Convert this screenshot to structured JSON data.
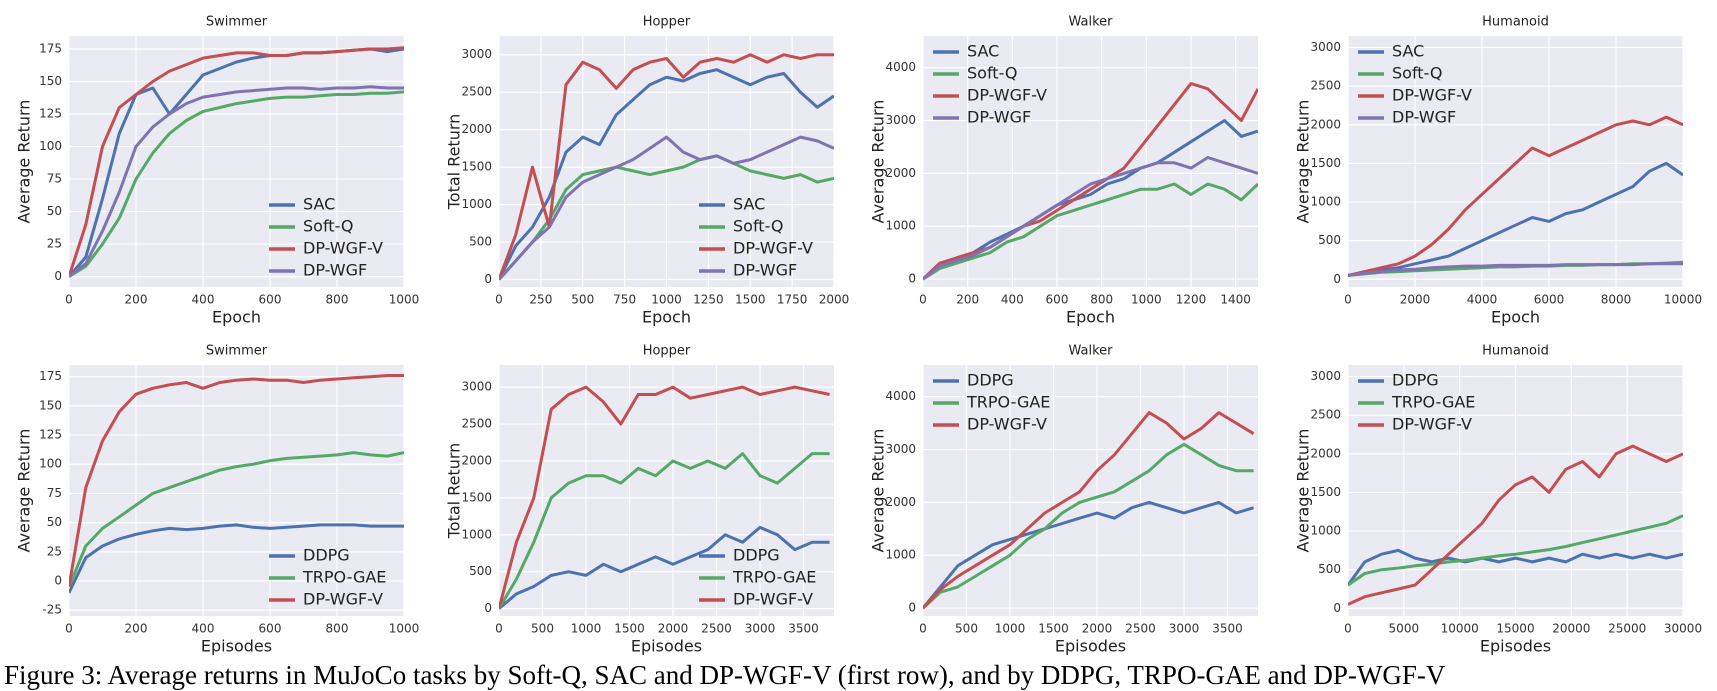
{
  "chart_data": [
    {
      "type": "line",
      "title": "Swimmer",
      "xlabel": "Epoch",
      "ylabel": "Average Return",
      "legend": "lower right",
      "x": [
        0,
        50,
        100,
        150,
        200,
        250,
        300,
        350,
        400,
        450,
        500,
        550,
        600,
        650,
        700,
        750,
        800,
        850,
        900,
        950,
        1000
      ],
      "xlim": [
        0,
        1000
      ],
      "ylim": [
        -8,
        185
      ],
      "xticks": [
        0,
        200,
        400,
        600,
        800,
        1000
      ],
      "yticks": [
        0,
        25,
        50,
        75,
        100,
        125,
        150,
        175
      ],
      "series": [
        {
          "name": "SAC",
          "color": "#4c72b0",
          "values": [
            0,
            15,
            60,
            110,
            140,
            145,
            125,
            140,
            155,
            160,
            165,
            168,
            170,
            170,
            172,
            172,
            173,
            174,
            175,
            173,
            175
          ]
        },
        {
          "name": "Soft-Q",
          "color": "#55a868",
          "values": [
            0,
            8,
            25,
            45,
            75,
            95,
            110,
            120,
            127,
            130,
            133,
            135,
            137,
            138,
            138,
            139,
            140,
            140,
            141,
            141,
            142
          ]
        },
        {
          "name": "DP-WGF-V",
          "color": "#c44e52",
          "values": [
            0,
            40,
            100,
            130,
            140,
            150,
            158,
            163,
            168,
            170,
            172,
            172,
            170,
            170,
            172,
            172,
            173,
            174,
            175,
            175,
            176
          ]
        },
        {
          "name": "DP-WGF",
          "color": "#8172b2",
          "values": [
            0,
            10,
            35,
            65,
            100,
            115,
            125,
            133,
            138,
            140,
            142,
            143,
            144,
            145,
            145,
            144,
            145,
            145,
            146,
            145,
            145
          ]
        }
      ]
    },
    {
      "type": "line",
      "title": "Hopper",
      "xlabel": "Epoch",
      "ylabel": "Total Return",
      "legend": "lower right",
      "x": [
        0,
        100,
        200,
        300,
        400,
        500,
        600,
        700,
        800,
        900,
        1000,
        1100,
        1200,
        1300,
        1400,
        1500,
        1600,
        1700,
        1800,
        1900,
        2000
      ],
      "xlim": [
        0,
        2000
      ],
      "ylim": [
        -100,
        3250
      ],
      "xticks": [
        0,
        250,
        500,
        750,
        1000,
        1250,
        1500,
        1750,
        2000
      ],
      "yticks": [
        0,
        500,
        1000,
        1500,
        2000,
        2500,
        3000
      ],
      "series": [
        {
          "name": "SAC",
          "color": "#4c72b0",
          "values": [
            0,
            450,
            700,
            1100,
            1700,
            1900,
            1800,
            2200,
            2400,
            2600,
            2700,
            2650,
            2750,
            2800,
            2700,
            2600,
            2700,
            2750,
            2500,
            2300,
            2450
          ]
        },
        {
          "name": "Soft-Q",
          "color": "#55a868",
          "values": [
            0,
            250,
            500,
            800,
            1200,
            1400,
            1450,
            1500,
            1450,
            1400,
            1450,
            1500,
            1600,
            1650,
            1550,
            1450,
            1400,
            1350,
            1400,
            1300,
            1350
          ]
        },
        {
          "name": "DP-WGF-V",
          "color": "#c44e52",
          "values": [
            0,
            600,
            1500,
            700,
            2600,
            2900,
            2800,
            2550,
            2800,
            2900,
            2950,
            2700,
            2900,
            2950,
            2900,
            3000,
            2900,
            3000,
            2950,
            3000,
            3000
          ]
        },
        {
          "name": "DP-WGF",
          "color": "#8172b2",
          "values": [
            0,
            250,
            500,
            700,
            1100,
            1300,
            1400,
            1500,
            1600,
            1750,
            1900,
            1700,
            1600,
            1650,
            1550,
            1600,
            1700,
            1800,
            1900,
            1850,
            1750
          ]
        }
      ]
    },
    {
      "type": "line",
      "title": "Walker",
      "xlabel": "Epoch",
      "ylabel": "Average Return",
      "legend": "upper left",
      "x": [
        0,
        75,
        150,
        225,
        300,
        375,
        450,
        525,
        600,
        675,
        750,
        825,
        900,
        975,
        1050,
        1125,
        1200,
        1275,
        1350,
        1425,
        1500
      ],
      "xlim": [
        0,
        1500
      ],
      "ylim": [
        -150,
        4600
      ],
      "xticks": [
        0,
        200,
        400,
        600,
        800,
        1000,
        1200,
        1400
      ],
      "yticks": [
        0,
        1000,
        2000,
        3000,
        4000
      ],
      "series": [
        {
          "name": "SAC",
          "color": "#4c72b0",
          "values": [
            0,
            250,
            400,
            500,
            700,
            850,
            1000,
            1200,
            1400,
            1500,
            1600,
            1800,
            1900,
            2100,
            2200,
            2400,
            2600,
            2800,
            3000,
            2700,
            2800
          ]
        },
        {
          "name": "Soft-Q",
          "color": "#55a868",
          "values": [
            0,
            200,
            300,
            400,
            500,
            700,
            800,
            1000,
            1200,
            1300,
            1400,
            1500,
            1600,
            1700,
            1700,
            1800,
            1600,
            1800,
            1700,
            1500,
            1800
          ]
        },
        {
          "name": "DP-WGF-V",
          "color": "#c44e52",
          "values": [
            0,
            300,
            400,
            500,
            600,
            800,
            1000,
            1100,
            1300,
            1500,
            1700,
            1900,
            2100,
            2500,
            2900,
            3300,
            3700,
            3600,
            3300,
            3000,
            3600
          ]
        },
        {
          "name": "DP-WGF",
          "color": "#8172b2",
          "values": [
            0,
            250,
            350,
            450,
            600,
            800,
            1000,
            1200,
            1400,
            1600,
            1800,
            1900,
            2000,
            2100,
            2200,
            2200,
            2100,
            2300,
            2200,
            2100,
            2000
          ]
        }
      ]
    },
    {
      "type": "line",
      "title": "Humanoid",
      "xlabel": "Epoch",
      "ylabel": "Average Return",
      "legend": "upper left",
      "x": [
        0,
        500,
        1000,
        1500,
        2000,
        2500,
        3000,
        3500,
        4000,
        4500,
        5000,
        5500,
        6000,
        6500,
        7000,
        7500,
        8000,
        8500,
        9000,
        9500,
        10000
      ],
      "xlim": [
        0,
        10000
      ],
      "ylim": [
        -100,
        3150
      ],
      "xticks": [
        0,
        2000,
        4000,
        6000,
        8000,
        10000
      ],
      "yticks": [
        0,
        500,
        1000,
        1500,
        2000,
        2500,
        3000
      ],
      "series": [
        {
          "name": "SAC",
          "color": "#4c72b0",
          "values": [
            50,
            80,
            120,
            150,
            200,
            250,
            300,
            400,
            500,
            600,
            700,
            800,
            750,
            850,
            900,
            1000,
            1100,
            1200,
            1400,
            1500,
            1350
          ]
        },
        {
          "name": "Soft-Q",
          "color": "#55a868",
          "values": [
            50,
            70,
            90,
            100,
            110,
            120,
            130,
            140,
            150,
            160,
            160,
            170,
            170,
            180,
            180,
            190,
            190,
            200,
            200,
            210,
            220
          ]
        },
        {
          "name": "DP-WGF-V",
          "color": "#c44e52",
          "values": [
            50,
            100,
            150,
            200,
            300,
            450,
            650,
            900,
            1100,
            1300,
            1500,
            1700,
            1600,
            1700,
            1800,
            1900,
            2000,
            2050,
            2000,
            2100,
            2000
          ]
        },
        {
          "name": "DP-WGF",
          "color": "#8172b2",
          "values": [
            50,
            80,
            100,
            120,
            130,
            150,
            160,
            170,
            170,
            180,
            180,
            180,
            180,
            190,
            190,
            190,
            190,
            190,
            200,
            200,
            200
          ]
        }
      ]
    },
    {
      "type": "line",
      "title": "Swimmer",
      "xlabel": "Episodes",
      "ylabel": "Average Return",
      "legend": "lower right",
      "x": [
        0,
        50,
        100,
        150,
        200,
        250,
        300,
        350,
        400,
        450,
        500,
        550,
        600,
        650,
        700,
        750,
        800,
        850,
        900,
        950,
        1000
      ],
      "xlim": [
        0,
        1000
      ],
      "ylim": [
        -30,
        185
      ],
      "xticks": [
        0,
        200,
        400,
        600,
        800,
        1000
      ],
      "yticks": [
        -25,
        0,
        25,
        50,
        75,
        100,
        125,
        150,
        175
      ],
      "series": [
        {
          "name": "DDPG",
          "color": "#4c72b0",
          "values": [
            -10,
            20,
            30,
            36,
            40,
            43,
            45,
            44,
            45,
            47,
            48,
            46,
            45,
            46,
            47,
            48,
            48,
            48,
            47,
            47,
            47
          ]
        },
        {
          "name": "TRPO-GAE",
          "color": "#55a868",
          "values": [
            -5,
            30,
            45,
            55,
            65,
            75,
            80,
            85,
            90,
            95,
            98,
            100,
            103,
            105,
            106,
            107,
            108,
            110,
            108,
            107,
            110
          ]
        },
        {
          "name": "DP-WGF-V",
          "color": "#c44e52",
          "values": [
            -5,
            80,
            120,
            145,
            160,
            165,
            168,
            170,
            165,
            170,
            172,
            173,
            172,
            172,
            170,
            172,
            173,
            174,
            175,
            176,
            176
          ]
        }
      ]
    },
    {
      "type": "line",
      "title": "Hopper",
      "xlabel": "Episodes",
      "ylabel": "Total Return",
      "legend": "lower right",
      "x": [
        0,
        200,
        400,
        600,
        800,
        1000,
        1200,
        1400,
        1600,
        1800,
        2000,
        2200,
        2400,
        2600,
        2800,
        3000,
        3200,
        3400,
        3600,
        3800
      ],
      "xlim": [
        0,
        3850
      ],
      "ylim": [
        -100,
        3300
      ],
      "xticks": [
        0,
        500,
        1000,
        1500,
        2000,
        2500,
        3000,
        3500
      ],
      "yticks": [
        0,
        500,
        1000,
        1500,
        2000,
        2500,
        3000
      ],
      "series": [
        {
          "name": "DDPG",
          "color": "#4c72b0",
          "values": [
            0,
            200,
            300,
            450,
            500,
            450,
            600,
            500,
            600,
            700,
            600,
            700,
            800,
            1000,
            900,
            1100,
            1000,
            800,
            900,
            900
          ]
        },
        {
          "name": "TRPO-GAE",
          "color": "#55a868",
          "values": [
            0,
            400,
            900,
            1500,
            1700,
            1800,
            1800,
            1700,
            1900,
            1800,
            2000,
            1900,
            2000,
            1900,
            2100,
            1800,
            1700,
            1900,
            2100,
            2100
          ]
        },
        {
          "name": "DP-WGF-V",
          "color": "#c44e52",
          "values": [
            0,
            900,
            1500,
            2700,
            2900,
            3000,
            2800,
            2500,
            2900,
            2900,
            3000,
            2850,
            2900,
            2950,
            3000,
            2900,
            2950,
            3000,
            2950,
            2900
          ]
        }
      ]
    },
    {
      "type": "line",
      "title": "Walker",
      "xlabel": "Episodes",
      "ylabel": "Average Return",
      "legend": "upper left",
      "x": [
        0,
        200,
        400,
        600,
        800,
        1000,
        1200,
        1400,
        1600,
        1800,
        2000,
        2200,
        2400,
        2600,
        2800,
        3000,
        3200,
        3400,
        3600,
        3800
      ],
      "xlim": [
        0,
        3850
      ],
      "ylim": [
        -150,
        4600
      ],
      "xticks": [
        0,
        500,
        1000,
        1500,
        2000,
        2500,
        3000,
        3500
      ],
      "yticks": [
        0,
        1000,
        2000,
        3000,
        4000
      ],
      "series": [
        {
          "name": "DDPG",
          "color": "#4c72b0",
          "values": [
            0,
            400,
            800,
            1000,
            1200,
            1300,
            1400,
            1500,
            1600,
            1700,
            1800,
            1700,
            1900,
            2000,
            1900,
            1800,
            1900,
            2000,
            1800,
            1900
          ]
        },
        {
          "name": "TRPO-GAE",
          "color": "#55a868",
          "values": [
            0,
            300,
            400,
            600,
            800,
            1000,
            1300,
            1500,
            1800,
            2000,
            2100,
            2200,
            2400,
            2600,
            2900,
            3100,
            2900,
            2700,
            2600,
            2600
          ]
        },
        {
          "name": "DP-WGF-V",
          "color": "#c44e52",
          "values": [
            0,
            350,
            600,
            800,
            1000,
            1200,
            1500,
            1800,
            2000,
            2200,
            2600,
            2900,
            3300,
            3700,
            3500,
            3200,
            3400,
            3700,
            3500,
            3300
          ]
        }
      ]
    },
    {
      "type": "line",
      "title": "Humanoid",
      "xlabel": "Episodes",
      "ylabel": "Average Return",
      "legend": "upper left",
      "x": [
        0,
        1500,
        3000,
        4500,
        6000,
        7500,
        9000,
        10500,
        12000,
        13500,
        15000,
        16500,
        18000,
        19500,
        21000,
        22500,
        24000,
        25500,
        27000,
        28500,
        30000
      ],
      "xlim": [
        0,
        30000
      ],
      "ylim": [
        -100,
        3150
      ],
      "xticks": [
        0,
        5000,
        10000,
        15000,
        20000,
        25000,
        30000
      ],
      "yticks": [
        0,
        500,
        1000,
        1500,
        2000,
        2500,
        3000
      ],
      "series": [
        {
          "name": "DDPG",
          "color": "#4c72b0",
          "values": [
            300,
            600,
            700,
            750,
            650,
            600,
            650,
            600,
            650,
            600,
            650,
            600,
            650,
            600,
            700,
            650,
            700,
            650,
            700,
            650,
            700
          ]
        },
        {
          "name": "TRPO-GAE",
          "color": "#55a868",
          "values": [
            300,
            450,
            500,
            520,
            550,
            570,
            600,
            620,
            650,
            680,
            700,
            730,
            760,
            800,
            850,
            900,
            950,
            1000,
            1050,
            1100,
            1200
          ]
        },
        {
          "name": "DP-WGF-V",
          "color": "#c44e52",
          "values": [
            50,
            150,
            200,
            250,
            300,
            500,
            700,
            900,
            1100,
            1400,
            1600,
            1700,
            1500,
            1800,
            1900,
            1700,
            2000,
            2100,
            2000,
            1900,
            2000
          ]
        }
      ]
    }
  ],
  "caption": "Figure 3: Average returns in MuJoCo tasks by Soft-Q, SAC and DP-WGF-V (first row), and by DDPG, TRPO-GAE and DP-WGF-V"
}
